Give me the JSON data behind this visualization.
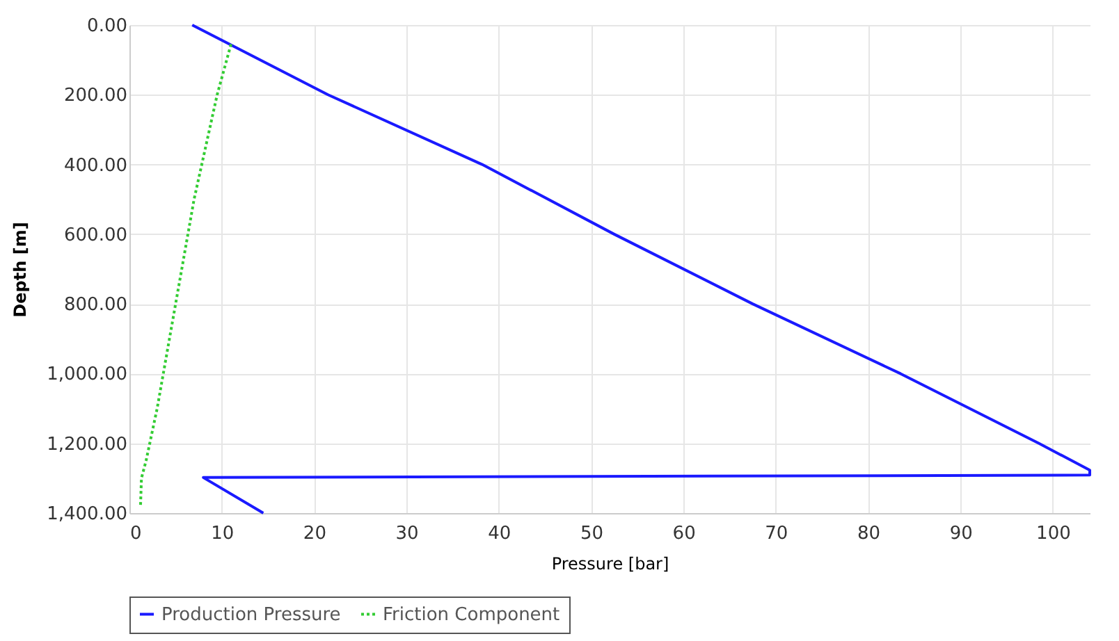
{
  "chart_data": {
    "type": "line",
    "xlabel": "Pressure [bar]",
    "ylabel": "Depth [m]",
    "xlim": [
      0,
      104
    ],
    "xticks": [
      0,
      10,
      20,
      30,
      40,
      50,
      60,
      70,
      80,
      90,
      100
    ],
    "ylim": [
      1400,
      0
    ],
    "yticks": [
      {
        "value": 0,
        "label": "0.00"
      },
      {
        "value": 200,
        "label": "200.00"
      },
      {
        "value": 400,
        "label": "400.00"
      },
      {
        "value": 600,
        "label": "600.00"
      },
      {
        "value": 800,
        "label": "800.00"
      },
      {
        "value": 1000,
        "label": "1,000.00"
      },
      {
        "value": 1200,
        "label": "1,200.00"
      },
      {
        "value": 1400,
        "label": "1,400.00"
      }
    ],
    "grid": true,
    "legend": "bottom",
    "marker": "none",
    "series": [
      {
        "name": "Production Pressure",
        "color": "#1a1aff",
        "line_style": "solid",
        "x": [
          6.8,
          21.5,
          38.2,
          52.5,
          67.5,
          83.5,
          98.5,
          104,
          104,
          8,
          14.5
        ],
        "values": [
          0,
          200,
          400,
          600,
          800,
          1000,
          1200,
          1277,
          1291,
          1298,
          1400
        ]
      },
      {
        "name": "Friction Component",
        "color": "#33cc33",
        "line_style": "dotted",
        "x": [
          11,
          9.5,
          7,
          5,
          3,
          1.8,
          1.3,
          1.2
        ],
        "values": [
          55,
          200,
          500,
          800,
          1100,
          1250,
          1300,
          1380
        ]
      }
    ]
  }
}
